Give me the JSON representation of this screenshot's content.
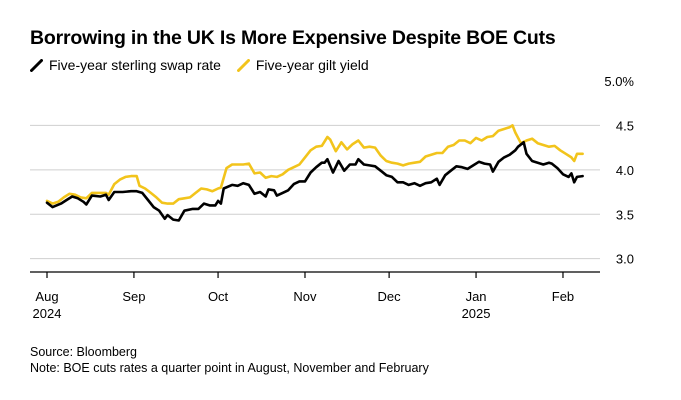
{
  "title": "Borrowing in the UK Is More Expensive Despite BOE Cuts",
  "source": "Source: Bloomberg",
  "note": "Note: BOE cuts rates a quarter point in August, November and February",
  "colors": {
    "swap": "#000000",
    "gilt": "#f2c41c",
    "axis": "#000000",
    "grid": "#cfcfcf"
  },
  "chart_data": {
    "type": "line",
    "title": "Borrowing in the UK Is More Expensive Despite BOE Cuts",
    "xlabel": "",
    "ylabel": "",
    "x_start_day": 0,
    "x_end_day": 189,
    "month_ticks": [
      {
        "label": "Aug",
        "year": "2024",
        "day": 0
      },
      {
        "label": "Sep",
        "year": "",
        "day": 31
      },
      {
        "label": "Oct",
        "year": "",
        "day": 61
      },
      {
        "label": "Nov",
        "year": "",
        "day": 92
      },
      {
        "label": "Dec",
        "year": "",
        "day": 122
      },
      {
        "label": "Jan",
        "year": "2025",
        "day": 153
      },
      {
        "label": "Feb",
        "year": "",
        "day": 184
      }
    ],
    "y_ticks": [
      {
        "label": "3.0",
        "value": 3.0
      },
      {
        "label": "3.5",
        "value": 3.5
      },
      {
        "label": "4.0",
        "value": 4.0
      },
      {
        "label": "4.5",
        "value": 4.5
      },
      {
        "label": "5.0%",
        "value": 5.0
      }
    ],
    "ylim": [
      2.85,
      5.0
    ],
    "grid": true,
    "series": [
      {
        "name": "Five-year sterling swap rate",
        "color": "#000000",
        "points": [
          [
            0,
            3.63
          ],
          [
            2,
            3.58
          ],
          [
            5,
            3.62
          ],
          [
            7,
            3.66
          ],
          [
            9,
            3.7
          ],
          [
            11,
            3.68
          ],
          [
            13,
            3.64
          ],
          [
            14,
            3.61
          ],
          [
            16,
            3.71
          ],
          [
            19,
            3.7
          ],
          [
            21,
            3.72
          ],
          [
            22,
            3.66
          ],
          [
            24,
            3.75
          ],
          [
            27,
            3.75
          ],
          [
            30,
            3.76
          ],
          [
            32,
            3.76
          ],
          [
            34,
            3.74
          ],
          [
            36,
            3.66
          ],
          [
            38,
            3.58
          ],
          [
            40,
            3.54
          ],
          [
            42,
            3.45
          ],
          [
            43,
            3.49
          ],
          [
            45,
            3.44
          ],
          [
            47,
            3.43
          ],
          [
            49,
            3.54
          ],
          [
            52,
            3.56
          ],
          [
            54,
            3.56
          ],
          [
            56,
            3.62
          ],
          [
            58,
            3.6
          ],
          [
            60,
            3.6
          ],
          [
            61,
            3.65
          ],
          [
            62,
            3.62
          ],
          [
            63,
            3.79
          ],
          [
            66,
            3.83
          ],
          [
            68,
            3.82
          ],
          [
            70,
            3.85
          ],
          [
            72,
            3.83
          ],
          [
            74,
            3.73
          ],
          [
            76,
            3.75
          ],
          [
            78,
            3.7
          ],
          [
            79,
            3.78
          ],
          [
            81,
            3.77
          ],
          [
            82,
            3.71
          ],
          [
            84,
            3.74
          ],
          [
            86,
            3.77
          ],
          [
            88,
            3.84
          ],
          [
            90,
            3.87
          ],
          [
            92,
            3.87
          ],
          [
            94,
            3.97
          ],
          [
            96,
            4.03
          ],
          [
            98,
            4.08
          ],
          [
            99,
            4.08
          ],
          [
            100,
            4.12
          ],
          [
            102,
            3.97
          ],
          [
            104,
            4.1
          ],
          [
            106,
            3.99
          ],
          [
            108,
            4.06
          ],
          [
            110,
            4.06
          ],
          [
            111,
            4.12
          ],
          [
            113,
            4.06
          ],
          [
            115,
            4.05
          ],
          [
            117,
            4.04
          ],
          [
            119,
            3.99
          ],
          [
            121,
            3.94
          ],
          [
            123,
            3.92
          ],
          [
            125,
            3.86
          ],
          [
            127,
            3.86
          ],
          [
            129,
            3.83
          ],
          [
            131,
            3.85
          ],
          [
            133,
            3.82
          ],
          [
            135,
            3.85
          ],
          [
            137,
            3.86
          ],
          [
            139,
            3.9
          ],
          [
            140,
            3.83
          ],
          [
            142,
            3.94
          ],
          [
            144,
            3.99
          ],
          [
            146,
            4.04
          ],
          [
            148,
            4.03
          ],
          [
            150,
            4.01
          ],
          [
            152,
            4.05
          ],
          [
            154,
            4.09
          ],
          [
            156,
            4.07
          ],
          [
            158,
            4.06
          ],
          [
            159,
            3.98
          ],
          [
            161,
            4.09
          ],
          [
            163,
            4.14
          ],
          [
            165,
            4.17
          ],
          [
            167,
            4.22
          ],
          [
            168,
            4.26
          ],
          [
            170,
            4.31
          ],
          [
            171,
            4.18
          ],
          [
            173,
            4.1
          ],
          [
            175,
            4.08
          ],
          [
            177,
            4.06
          ],
          [
            179,
            4.08
          ],
          [
            180,
            4.07
          ],
          [
            182,
            4.02
          ],
          [
            184,
            3.95
          ],
          [
            186,
            3.92
          ],
          [
            187,
            3.96
          ],
          [
            188,
            3.86
          ],
          [
            189,
            3.92
          ],
          [
            191,
            3.93
          ]
        ]
      },
      {
        "name": "Five-year gilt yield",
        "color": "#f2c41c",
        "points": [
          [
            0,
            3.65
          ],
          [
            2,
            3.62
          ],
          [
            4,
            3.64
          ],
          [
            6,
            3.69
          ],
          [
            8,
            3.73
          ],
          [
            10,
            3.72
          ],
          [
            12,
            3.69
          ],
          [
            14,
            3.68
          ],
          [
            16,
            3.74
          ],
          [
            19,
            3.74
          ],
          [
            21,
            3.74
          ],
          [
            22,
            3.72
          ],
          [
            24,
            3.84
          ],
          [
            26,
            3.89
          ],
          [
            28,
            3.92
          ],
          [
            30,
            3.93
          ],
          [
            32,
            3.93
          ],
          [
            33,
            3.82
          ],
          [
            35,
            3.79
          ],
          [
            37,
            3.74
          ],
          [
            39,
            3.69
          ],
          [
            41,
            3.63
          ],
          [
            43,
            3.62
          ],
          [
            45,
            3.62
          ],
          [
            47,
            3.67
          ],
          [
            49,
            3.68
          ],
          [
            51,
            3.69
          ],
          [
            53,
            3.74
          ],
          [
            55,
            3.79
          ],
          [
            57,
            3.78
          ],
          [
            59,
            3.76
          ],
          [
            61,
            3.79
          ],
          [
            62,
            3.8
          ],
          [
            64,
            4.02
          ],
          [
            66,
            4.06
          ],
          [
            68,
            4.06
          ],
          [
            70,
            4.06
          ],
          [
            72,
            4.07
          ],
          [
            74,
            3.96
          ],
          [
            76,
            3.97
          ],
          [
            78,
            3.91
          ],
          [
            80,
            3.93
          ],
          [
            82,
            3.92
          ],
          [
            84,
            3.95
          ],
          [
            86,
            4.0
          ],
          [
            88,
            4.03
          ],
          [
            90,
            4.06
          ],
          [
            92,
            4.14
          ],
          [
            94,
            4.22
          ],
          [
            96,
            4.26
          ],
          [
            98,
            4.27
          ],
          [
            100,
            4.37
          ],
          [
            101,
            4.34
          ],
          [
            103,
            4.21
          ],
          [
            105,
            4.31
          ],
          [
            107,
            4.23
          ],
          [
            109,
            4.29
          ],
          [
            111,
            4.33
          ],
          [
            113,
            4.25
          ],
          [
            115,
            4.26
          ],
          [
            117,
            4.25
          ],
          [
            119,
            4.16
          ],
          [
            121,
            4.1
          ],
          [
            123,
            4.08
          ],
          [
            125,
            4.07
          ],
          [
            127,
            4.05
          ],
          [
            129,
            4.07
          ],
          [
            131,
            4.08
          ],
          [
            133,
            4.09
          ],
          [
            135,
            4.15
          ],
          [
            137,
            4.17
          ],
          [
            139,
            4.19
          ],
          [
            141,
            4.19
          ],
          [
            143,
            4.26
          ],
          [
            145,
            4.28
          ],
          [
            147,
            4.33
          ],
          [
            149,
            4.33
          ],
          [
            151,
            4.3
          ],
          [
            153,
            4.36
          ],
          [
            155,
            4.33
          ],
          [
            157,
            4.37
          ],
          [
            159,
            4.38
          ],
          [
            161,
            4.44
          ],
          [
            163,
            4.46
          ],
          [
            165,
            4.48
          ],
          [
            166,
            4.5
          ],
          [
            167,
            4.42
          ],
          [
            169,
            4.3
          ],
          [
            171,
            4.33
          ],
          [
            173,
            4.35
          ],
          [
            175,
            4.3
          ],
          [
            177,
            4.28
          ],
          [
            179,
            4.26
          ],
          [
            181,
            4.27
          ],
          [
            183,
            4.22
          ],
          [
            185,
            4.18
          ],
          [
            187,
            4.14
          ],
          [
            188,
            4.1
          ],
          [
            189,
            4.18
          ],
          [
            191,
            4.18
          ]
        ]
      }
    ]
  }
}
